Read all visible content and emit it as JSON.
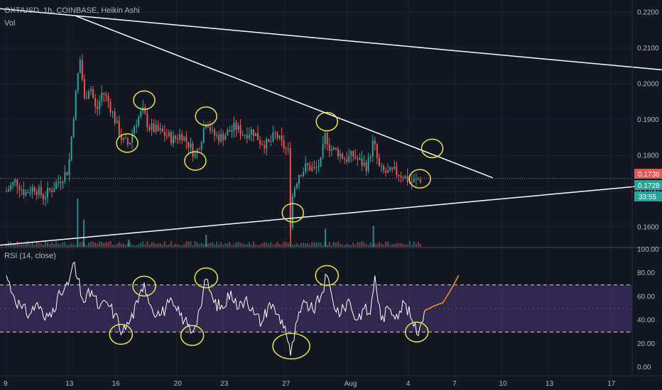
{
  "header": {
    "symbol_line": "OXT/USD, 1h, COINBASE, Heikin Ashi",
    "vol_label": "Vol",
    "rsi_label": "RSI (14, close)"
  },
  "price_tags": {
    "last_price": "0.1736",
    "current_price": "0.1728",
    "countdown": "33:55"
  },
  "colors": {
    "background": "#131722",
    "up": "#26a69a",
    "down": "#ef5350",
    "annotation": "#e8e83a",
    "trendline": "#ffffff",
    "rsi_band": "#7e57c2",
    "rsi_line": "#ffffff",
    "projection": "#ff9800"
  },
  "chart_data": [
    {
      "type": "candlestick",
      "title": "OXT/USD, 1h, COINBASE, Heikin Ashi",
      "x_ticks": [
        "9",
        "13",
        "16",
        "20",
        "23",
        "27",
        "Aug",
        "4",
        "7",
        "10",
        "13",
        "17"
      ],
      "y_ticks": [
        "0.2200",
        "0.2100",
        "0.2000",
        "0.1900",
        "0.1800",
        "0.1700",
        "0.1600"
      ],
      "ylim": [
        0.1545,
        0.2235
      ],
      "last_price": 0.1736,
      "current_price": 0.1728,
      "price_path": [
        {
          "x": 9.0,
          "y": 0.17
        },
        {
          "x": 9.6,
          "y": 0.173
        },
        {
          "x": 10.2,
          "y": 0.1695
        },
        {
          "x": 10.8,
          "y": 0.1712
        },
        {
          "x": 11.4,
          "y": 0.1685
        },
        {
          "x": 12.0,
          "y": 0.171
        },
        {
          "x": 12.6,
          "y": 0.174
        },
        {
          "x": 13.0,
          "y": 0.176
        },
        {
          "x": 13.3,
          "y": 0.19
        },
        {
          "x": 13.6,
          "y": 0.202
        },
        {
          "x": 13.8,
          "y": 0.208
        },
        {
          "x": 14.0,
          "y": 0.195
        },
        {
          "x": 14.4,
          "y": 0.2
        },
        {
          "x": 14.8,
          "y": 0.192
        },
        {
          "x": 15.2,
          "y": 0.198
        },
        {
          "x": 15.6,
          "y": 0.195
        },
        {
          "x": 16.0,
          "y": 0.19
        },
        {
          "x": 16.5,
          "y": 0.184
        },
        {
          "x": 16.9,
          "y": 0.183
        },
        {
          "x": 17.3,
          "y": 0.189
        },
        {
          "x": 17.8,
          "y": 0.1925
        },
        {
          "x": 18.2,
          "y": 0.188
        },
        {
          "x": 18.7,
          "y": 0.187
        },
        {
          "x": 19.2,
          "y": 0.186
        },
        {
          "x": 19.8,
          "y": 0.1845
        },
        {
          "x": 20.3,
          "y": 0.186
        },
        {
          "x": 20.8,
          "y": 0.183
        },
        {
          "x": 21.2,
          "y": 0.18
        },
        {
          "x": 21.6,
          "y": 0.185
        },
        {
          "x": 21.9,
          "y": 0.1905
        },
        {
          "x": 22.3,
          "y": 0.186
        },
        {
          "x": 22.8,
          "y": 0.185
        },
        {
          "x": 23.3,
          "y": 0.1865
        },
        {
          "x": 23.8,
          "y": 0.188
        },
        {
          "x": 24.3,
          "y": 0.186
        },
        {
          "x": 24.9,
          "y": 0.187
        },
        {
          "x": 25.4,
          "y": 0.184
        },
        {
          "x": 25.9,
          "y": 0.183
        },
        {
          "x": 26.4,
          "y": 0.186
        },
        {
          "x": 26.8,
          "y": 0.183
        },
        {
          "x": 27.2,
          "y": 0.181
        },
        {
          "x": 27.35,
          "y": 0.16
        },
        {
          "x": 27.5,
          "y": 0.17
        },
        {
          "x": 27.9,
          "y": 0.175
        },
        {
          "x": 28.4,
          "y": 0.177
        },
        {
          "x": 28.9,
          "y": 0.176
        },
        {
          "x": 29.3,
          "y": 0.178
        },
        {
          "x": 29.6,
          "y": 0.186
        },
        {
          "x": 29.9,
          "y": 0.182
        },
        {
          "x": 30.4,
          "y": 0.181
        },
        {
          "x": 30.9,
          "y": 0.179
        },
        {
          "x": 31.4,
          "y": 0.18
        },
        {
          "x": 31.9,
          "y": 0.178
        },
        {
          "x": 32.3,
          "y": 0.177
        },
        {
          "x": 32.7,
          "y": 0.184
        },
        {
          "x": 33.1,
          "y": 0.176
        },
        {
          "x": 33.6,
          "y": 0.175
        },
        {
          "x": 34.1,
          "y": 0.1755
        },
        {
          "x": 34.6,
          "y": 0.1745
        },
        {
          "x": 35.1,
          "y": 0.1725
        },
        {
          "x": 35.5,
          "y": 0.173
        },
        {
          "x": 35.8,
          "y": 0.1736
        }
      ],
      "volume_spikes": [
        {
          "x": 13.6,
          "v": 80
        },
        {
          "x": 14.0,
          "v": 45
        },
        {
          "x": 16.9,
          "v": 12
        },
        {
          "x": 21.9,
          "v": 20
        },
        {
          "x": 27.35,
          "v": 100
        },
        {
          "x": 29.6,
          "v": 30
        },
        {
          "x": 32.7,
          "v": 35
        }
      ],
      "trendlines": [
        {
          "name": "upper-descending",
          "from": {
            "x": 7.5,
            "y": 0.2215
          },
          "to": {
            "x": 52.5,
            "y": 0.2035
          }
        },
        {
          "name": "middle-descending",
          "from": {
            "x": 13.5,
            "y": 0.219
          },
          "to": {
            "x": 40.4,
            "y": 0.1738
          }
        },
        {
          "name": "lower-ascending",
          "from": {
            "x": 7.5,
            "y": 0.1545
          },
          "to": {
            "x": 52.5,
            "y": 0.1725
          }
        }
      ],
      "annotations_circled": [
        {
          "x": 16.8,
          "y": 0.1835
        },
        {
          "x": 17.9,
          "y": 0.1955
        },
        {
          "x": 21.2,
          "y": 0.1785
        },
        {
          "x": 21.9,
          "y": 0.191
        },
        {
          "x": 27.5,
          "y": 0.164
        },
        {
          "x": 29.7,
          "y": 0.1895
        },
        {
          "x": 35.7,
          "y": 0.1735
        },
        {
          "x": 36.5,
          "y": 0.182
        }
      ]
    },
    {
      "type": "line",
      "title": "RSI (14, close)",
      "x_ticks": [
        "9",
        "13",
        "16",
        "20",
        "23",
        "27",
        "Aug",
        "4",
        "7",
        "10",
        "13",
        "17"
      ],
      "y_ticks": [
        "100.00",
        "80.00",
        "60.00",
        "40.00",
        "20.00",
        "0.00"
      ],
      "ylim": [
        0,
        100
      ],
      "overbought": 70,
      "oversold": 30,
      "rsi": [
        {
          "x": 9.0,
          "y": 78
        },
        {
          "x": 9.5,
          "y": 60
        },
        {
          "x": 10.0,
          "y": 50
        },
        {
          "x": 10.5,
          "y": 45
        },
        {
          "x": 11.0,
          "y": 55
        },
        {
          "x": 11.5,
          "y": 40
        },
        {
          "x": 12.0,
          "y": 50
        },
        {
          "x": 12.5,
          "y": 62
        },
        {
          "x": 13.0,
          "y": 70
        },
        {
          "x": 13.3,
          "y": 88
        },
        {
          "x": 13.6,
          "y": 75
        },
        {
          "x": 14.0,
          "y": 55
        },
        {
          "x": 14.5,
          "y": 65
        },
        {
          "x": 15.0,
          "y": 50
        },
        {
          "x": 15.5,
          "y": 55
        },
        {
          "x": 16.0,
          "y": 45
        },
        {
          "x": 16.5,
          "y": 30
        },
        {
          "x": 17.0,
          "y": 40
        },
        {
          "x": 17.5,
          "y": 55
        },
        {
          "x": 17.9,
          "y": 72
        },
        {
          "x": 18.4,
          "y": 50
        },
        {
          "x": 19.0,
          "y": 45
        },
        {
          "x": 19.5,
          "y": 55
        },
        {
          "x": 20.0,
          "y": 48
        },
        {
          "x": 20.5,
          "y": 40
        },
        {
          "x": 21.0,
          "y": 30
        },
        {
          "x": 21.5,
          "y": 50
        },
        {
          "x": 21.9,
          "y": 75
        },
        {
          "x": 22.4,
          "y": 55
        },
        {
          "x": 23.0,
          "y": 50
        },
        {
          "x": 23.5,
          "y": 65
        },
        {
          "x": 24.0,
          "y": 50
        },
        {
          "x": 24.5,
          "y": 60
        },
        {
          "x": 25.0,
          "y": 45
        },
        {
          "x": 25.5,
          "y": 38
        },
        {
          "x": 26.0,
          "y": 55
        },
        {
          "x": 26.5,
          "y": 45
        },
        {
          "x": 27.0,
          "y": 35
        },
        {
          "x": 27.35,
          "y": 10
        },
        {
          "x": 27.8,
          "y": 40
        },
        {
          "x": 28.3,
          "y": 55
        },
        {
          "x": 28.8,
          "y": 48
        },
        {
          "x": 29.3,
          "y": 60
        },
        {
          "x": 29.7,
          "y": 78
        },
        {
          "x": 30.1,
          "y": 55
        },
        {
          "x": 30.6,
          "y": 45
        },
        {
          "x": 31.1,
          "y": 58
        },
        {
          "x": 31.6,
          "y": 40
        },
        {
          "x": 32.1,
          "y": 50
        },
        {
          "x": 32.5,
          "y": 45
        },
        {
          "x": 32.8,
          "y": 78
        },
        {
          "x": 33.2,
          "y": 40
        },
        {
          "x": 33.7,
          "y": 50
        },
        {
          "x": 34.2,
          "y": 45
        },
        {
          "x": 34.7,
          "y": 55
        },
        {
          "x": 35.2,
          "y": 40
        },
        {
          "x": 35.5,
          "y": 28
        },
        {
          "x": 35.8,
          "y": 38
        },
        {
          "x": 36.0,
          "y": 48
        }
      ],
      "projection": [
        {
          "x": 36.0,
          "y": 48
        },
        {
          "x": 36.6,
          "y": 52
        },
        {
          "x": 37.2,
          "y": 55
        },
        {
          "x": 37.8,
          "y": 68
        },
        {
          "x": 38.2,
          "y": 78
        }
      ],
      "annotations_circled": [
        {
          "x": 16.4,
          "y": 28
        },
        {
          "x": 17.9,
          "y": 69
        },
        {
          "x": 21.0,
          "y": 27
        },
        {
          "x": 21.9,
          "y": 76
        },
        {
          "x": 27.4,
          "y": 18
        },
        {
          "x": 29.7,
          "y": 78
        },
        {
          "x": 35.5,
          "y": 30
        }
      ]
    }
  ]
}
